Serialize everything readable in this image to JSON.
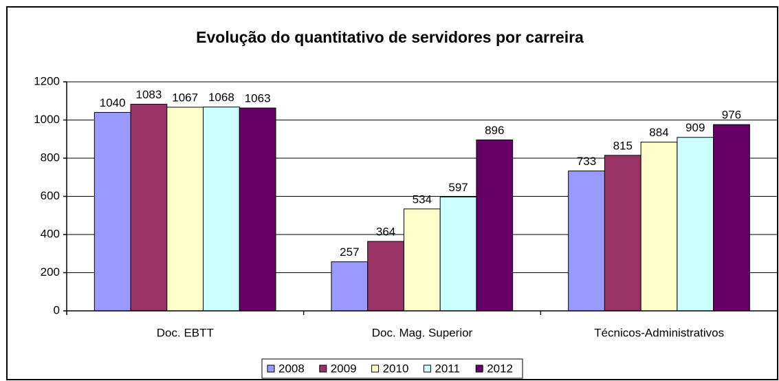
{
  "chart_data": {
    "type": "bar",
    "title": "Evolução do quantitativo de servidores por carreira",
    "categories": [
      "Doc. EBTT",
      "Doc. Mag. Superior",
      "Técnicos-Administrativos"
    ],
    "series": [
      {
        "name": "2008",
        "color": "#9999ff",
        "values": [
          1040,
          257,
          733
        ]
      },
      {
        "name": "2009",
        "color": "#993366",
        "values": [
          1083,
          364,
          815
        ]
      },
      {
        "name": "2010",
        "color": "#ffffcc",
        "values": [
          1067,
          534,
          884
        ]
      },
      {
        "name": "2011",
        "color": "#ccffff",
        "values": [
          1068,
          597,
          909
        ]
      },
      {
        "name": "2012",
        "color": "#660066",
        "values": [
          1063,
          896,
          976
        ]
      }
    ],
    "ylim": [
      0,
      1200
    ],
    "yticks": [
      0,
      200,
      400,
      600,
      800,
      1000,
      1200
    ],
    "grid": true,
    "legend": "bottom"
  }
}
